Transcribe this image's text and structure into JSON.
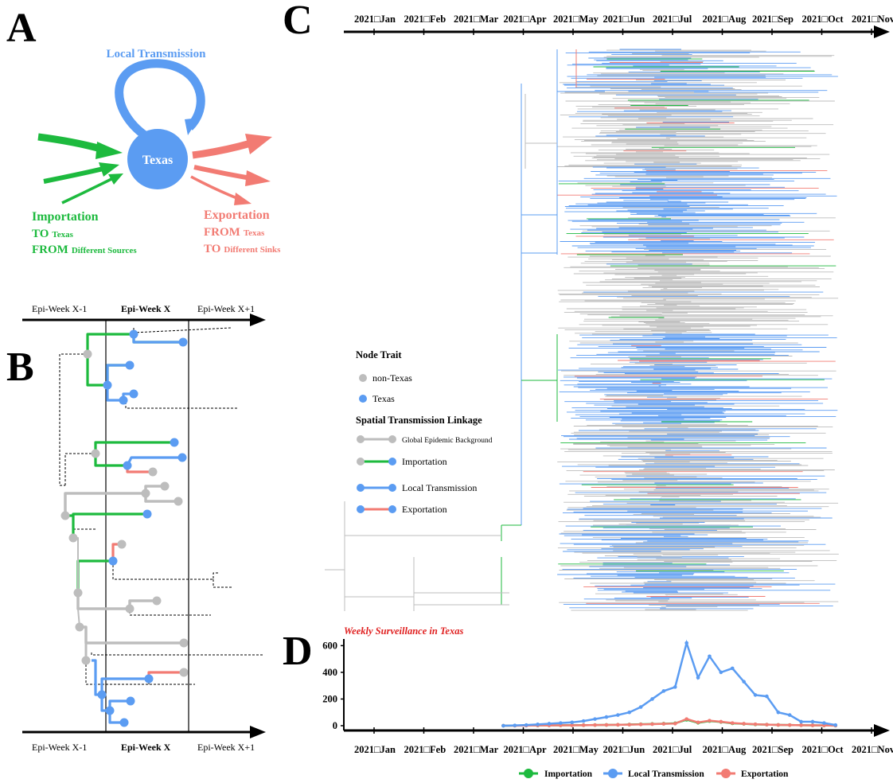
{
  "colors": {
    "importation": "#1dba3e",
    "local": "#5b9cf2",
    "exportation": "#f27b73",
    "background": "#bdbdbd",
    "texas_node": "#5b9cf2",
    "non_texas_node": "#bdbdbd",
    "surveillance_title": "#e02020"
  },
  "panel_letters": {
    "a": "A",
    "b": "B",
    "c": "C",
    "d": "D"
  },
  "panel_a": {
    "center_label": "Texas",
    "local_transmission": "Local Transmission",
    "importation_title": "Importation",
    "importation_to_big": "TO",
    "importation_to_small": "Texas",
    "importation_from_big": "FROM",
    "importation_from_small": "Different Sources",
    "exportation_title": "Exportation",
    "exportation_from_big": "FROM",
    "exportation_from_small": "Texas",
    "exportation_to_big": "TO",
    "exportation_to_small": "Different Sinks"
  },
  "panel_b": {
    "week_prev": "Epi-Week X-1",
    "week_current": "Epi-Week X",
    "week_next": "Epi-Week X+1"
  },
  "panel_c": {
    "month_labels": [
      "2021□Jan",
      "2021□Feb",
      "2021□Mar",
      "2021□Apr",
      "2021□May",
      "2021□Jun",
      "2021□Jul",
      "2021□Aug",
      "2021□Sep",
      "2021□Oct",
      "2021□Nov"
    ],
    "legend": {
      "node_trait_title": "Node Trait",
      "non_texas": "non-Texas",
      "texas": "Texas",
      "linkage_title": "Spatial Transmission Linkage",
      "global_background": "Global Epidemic Background",
      "importation": "Importation",
      "local_transmission": "Local Transmission",
      "exportation": "Exportation"
    }
  },
  "chart_data": {
    "type": "line",
    "title": "Weekly Surveillance in Texas",
    "xlabel": "",
    "ylabel": "",
    "x_tick_labels": [
      "2021□Jan",
      "2021□Feb",
      "2021□Mar",
      "2021□Apr",
      "2021□May",
      "2021□Jun",
      "2021□Jul",
      "2021□Aug",
      "2021□Sep",
      "2021□Oct",
      "2021□Nov"
    ],
    "y_ticks": [
      0,
      200,
      400,
      600
    ],
    "ylim": [
      0,
      650
    ],
    "legend_placement": "bottom",
    "x_weeks": [
      "2021-03-21",
      "2021-03-28",
      "2021-04-04",
      "2021-04-11",
      "2021-04-18",
      "2021-04-25",
      "2021-05-02",
      "2021-05-09",
      "2021-05-16",
      "2021-05-23",
      "2021-05-30",
      "2021-06-06",
      "2021-06-13",
      "2021-06-20",
      "2021-06-27",
      "2021-07-04",
      "2021-07-11",
      "2021-07-18",
      "2021-07-25",
      "2021-08-01",
      "2021-08-08",
      "2021-08-15",
      "2021-08-22",
      "2021-08-29",
      "2021-09-05",
      "2021-09-12",
      "2021-09-19",
      "2021-09-26",
      "2021-10-03",
      "2021-10-10"
    ],
    "series": [
      {
        "name": "Importation",
        "color": "#1dba3e",
        "values": [
          0,
          1,
          2,
          2,
          3,
          3,
          4,
          4,
          5,
          6,
          7,
          9,
          11,
          13,
          15,
          18,
          45,
          22,
          35,
          28,
          18,
          14,
          10,
          8,
          6,
          5,
          4,
          3,
          2,
          1
        ]
      },
      {
        "name": "Local Transmission",
        "color": "#5b9cf2",
        "values": [
          0,
          2,
          5,
          10,
          15,
          20,
          25,
          35,
          50,
          65,
          80,
          100,
          140,
          200,
          260,
          290,
          620,
          360,
          520,
          400,
          430,
          330,
          230,
          220,
          100,
          80,
          30,
          30,
          20,
          5
        ]
      },
      {
        "name": "Exportation",
        "color": "#f27b73",
        "values": [
          0,
          0,
          1,
          2,
          2,
          3,
          3,
          4,
          5,
          6,
          7,
          8,
          10,
          12,
          14,
          16,
          50,
          25,
          38,
          30,
          20,
          15,
          11,
          8,
          6,
          5,
          4,
          3,
          2,
          1
        ]
      }
    ]
  }
}
